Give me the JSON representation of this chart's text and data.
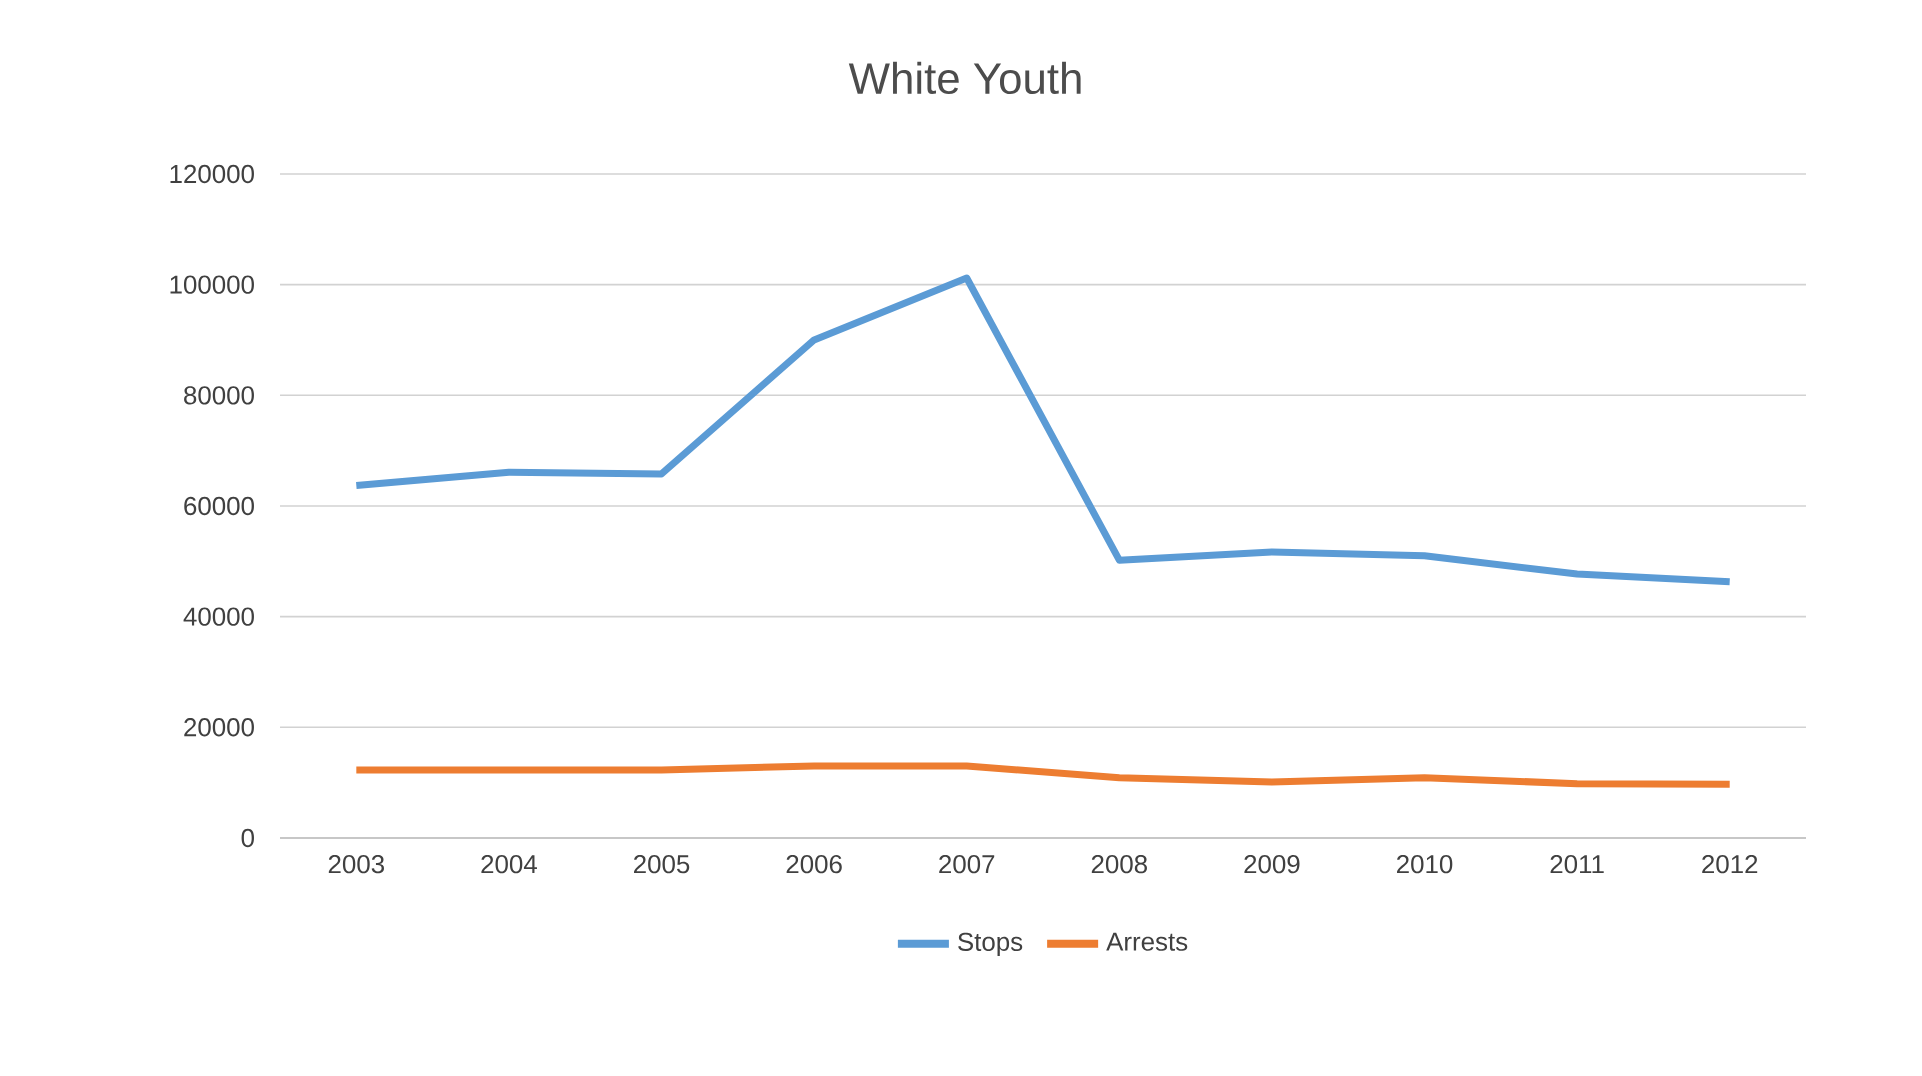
{
  "chart_data": {
    "type": "line",
    "title": "White Youth",
    "categories": [
      "2003",
      "2004",
      "2005",
      "2006",
      "2007",
      "2008",
      "2009",
      "2010",
      "2011",
      "2012"
    ],
    "series": [
      {
        "name": "Stops",
        "color": "#5b9bd5",
        "values": [
          63700,
          66100,
          65800,
          90000,
          101200,
          50200,
          51700,
          51000,
          47700,
          46300
        ]
      },
      {
        "name": "Arrests",
        "color": "#ed7d31",
        "values": [
          12300,
          12300,
          12300,
          13000,
          13000,
          10900,
          10100,
          10900,
          9800,
          9700
        ]
      }
    ],
    "ylim": [
      0,
      120000
    ],
    "yticks": [
      0,
      20000,
      40000,
      60000,
      80000,
      100000,
      120000
    ],
    "grid": "y",
    "legend": "bottom",
    "marker": "none",
    "line_style": "solid"
  }
}
